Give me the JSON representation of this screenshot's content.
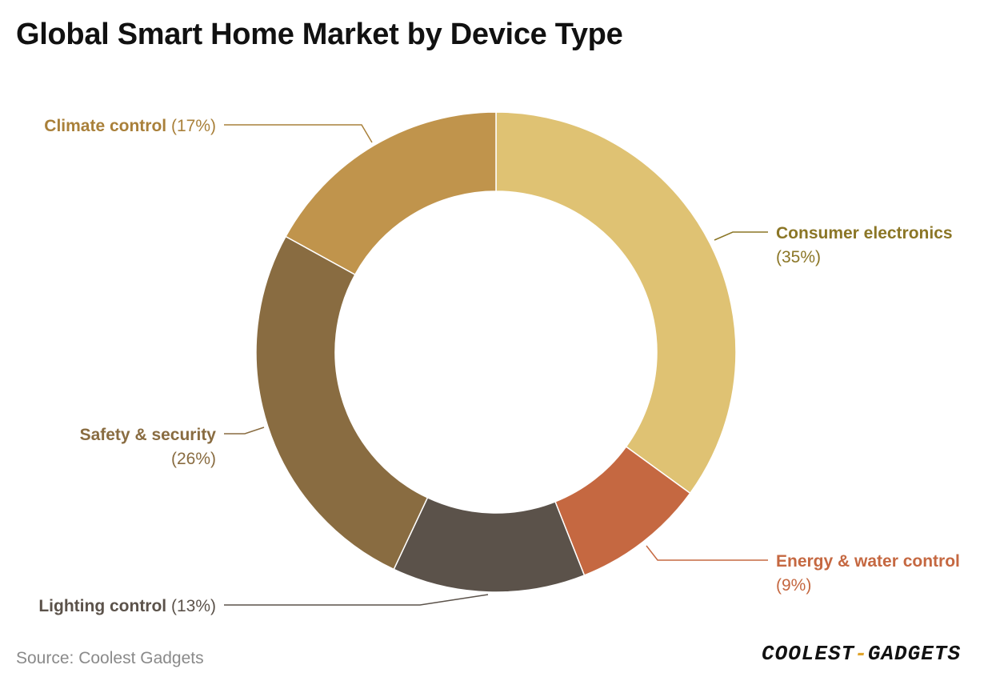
{
  "title": "Global Smart Home Market by Device Type",
  "source": "Source: Coolest Gadgets",
  "logo": {
    "text_left": "COOLEST",
    "text_dash": "-",
    "text_right": "GADGETS"
  },
  "chart_data": {
    "type": "pie",
    "variant": "donut",
    "title": "Global Smart Home Market by Device Type",
    "series": [
      {
        "values": [
          {
            "label": "Consumer electronics",
            "value": 35,
            "value_label": "(35%)",
            "color": "#DFC273"
          },
          {
            "label": "Energy & water control",
            "value": 9,
            "value_label": "(9%)",
            "color": "#C56841"
          },
          {
            "label": "Lighting control",
            "value": 13,
            "value_label": "(13%)",
            "color": "#5B524A"
          },
          {
            "label": "Safety & security",
            "value": 26,
            "value_label": "(26%)",
            "color": "#896C41"
          },
          {
            "label": "Climate control",
            "value": 17,
            "value_label": "(17%)",
            "color": "#C0944C"
          }
        ]
      }
    ],
    "label_colors": [
      "#8B7626",
      "#C56841",
      "#5B524A",
      "#896C41",
      "#A9803A"
    ]
  }
}
